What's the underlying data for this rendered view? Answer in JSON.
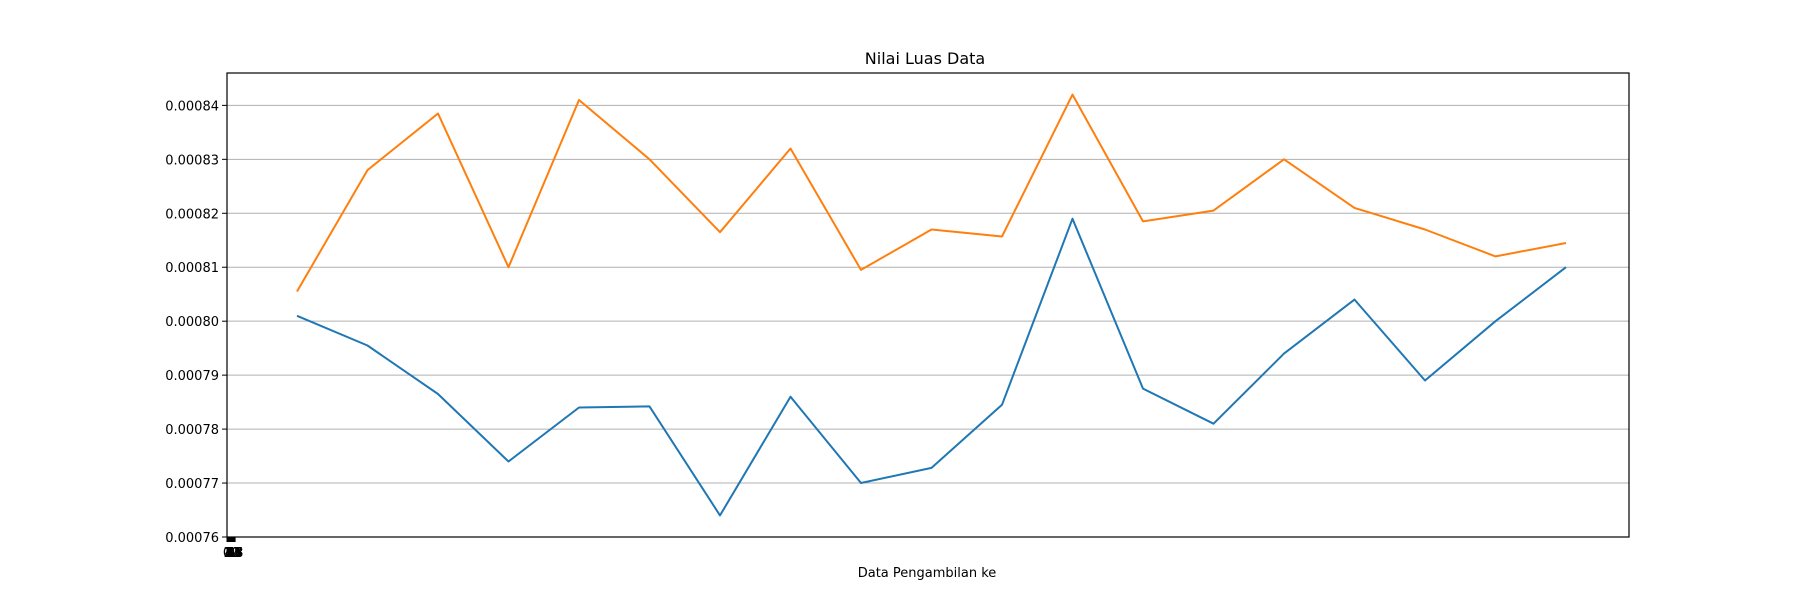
{
  "chart_data": {
    "type": "line",
    "title": "Nilai Luas Data",
    "xlabel": "Data Pengambilan ke",
    "ylabel": "",
    "ylim": [
      0.00076,
      0.000846
    ],
    "yticks": [
      "0.00076",
      "0.00077",
      "0.00078",
      "0.00079",
      "0.00080",
      "0.00081",
      "0.00082",
      "0.00083",
      "0.00084"
    ],
    "xticks": [
      "0",
      "1",
      "2",
      "3",
      "4",
      "5",
      "6",
      "7",
      "8",
      "9",
      "10",
      "11",
      "12",
      "13",
      "14",
      "15",
      "16",
      "17",
      "18"
    ],
    "grid": "horizontal",
    "x": [
      1,
      2,
      3,
      4,
      5,
      6,
      7,
      8,
      9,
      10,
      11,
      12,
      13,
      14,
      15,
      16,
      17,
      18,
      19
    ],
    "series": [
      {
        "color": "#1f77b4",
        "values": [
          0.000801,
          0.0007955,
          0.0007865,
          0.000774,
          0.000784,
          0.0007842,
          0.000764,
          0.000786,
          0.00077,
          0.0007728,
          0.0007845,
          0.000819,
          0.0007875,
          0.000781,
          0.000794,
          0.000804,
          0.000789,
          0.0008,
          0.00081
        ]
      },
      {
        "color": "#ff7f0e",
        "values": [
          0.0008055,
          0.000828,
          0.0008385,
          0.00081,
          0.000841,
          0.00083,
          0.0008165,
          0.000832,
          0.0008095,
          0.000817,
          0.0008157,
          0.000842,
          0.0008185,
          0.0008205,
          0.00083,
          0.000821,
          0.000817,
          0.000812,
          0.0008145
        ]
      }
    ]
  }
}
